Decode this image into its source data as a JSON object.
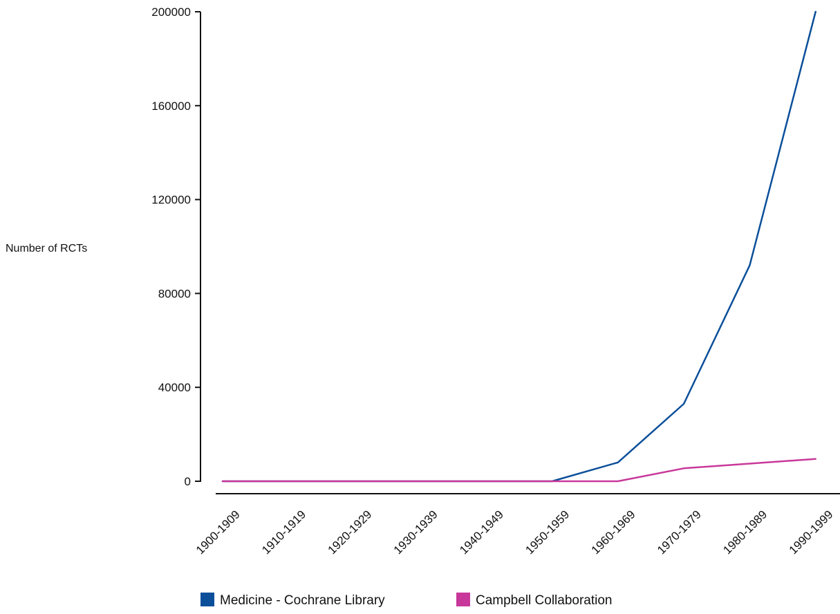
{
  "chart_data": {
    "type": "line",
    "ylabel": "Number of RCTs",
    "xlabel": "",
    "ylim": [
      0,
      200000
    ],
    "yticks": [
      0,
      40000,
      80000,
      120000,
      160000,
      200000
    ],
    "grid": false,
    "legend_position": "bottom",
    "categories": [
      "1900-1909",
      "1910-1919",
      "1920-1929",
      "1930-1939",
      "1940-1949",
      "1950-1959",
      "1960-1969",
      "1970-1979",
      "1980-1989",
      "1990-1999"
    ],
    "series": [
      {
        "name": "Medicine - Cochrane Library",
        "color": "#0b4f9a",
        "values": [
          0,
          0,
          0,
          0,
          0,
          0,
          8000,
          33000,
          92000,
          200000
        ]
      },
      {
        "name": "Campbell Collaboration",
        "color": "#c8389a",
        "values": [
          0,
          0,
          0,
          0,
          0,
          0,
          0,
          5500,
          7500,
          9500
        ]
      }
    ]
  }
}
